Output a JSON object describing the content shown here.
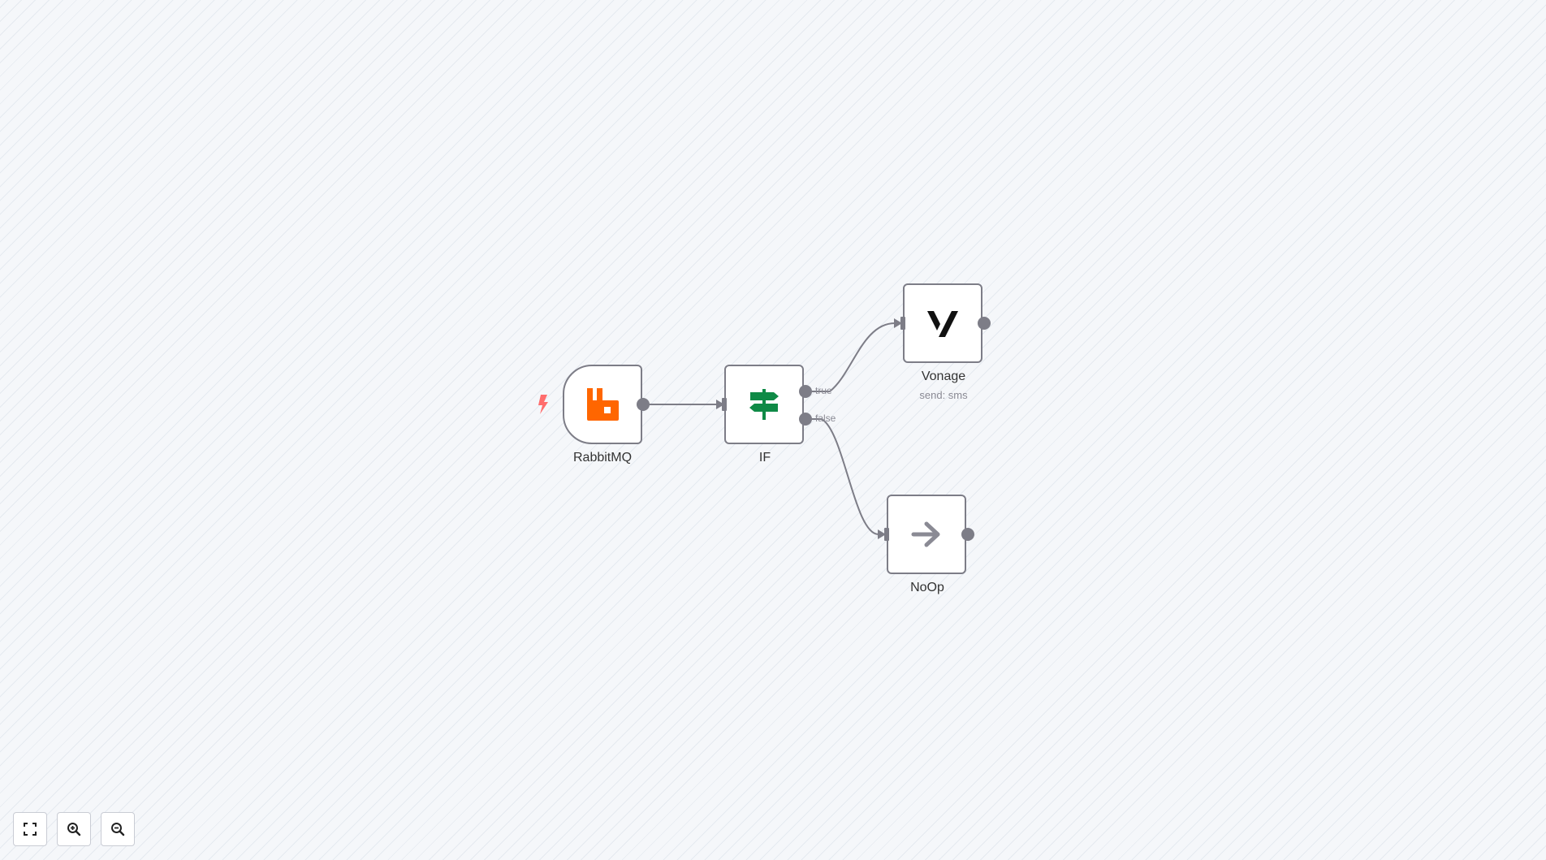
{
  "workflow": {
    "nodes": [
      {
        "id": "rabbitmq",
        "label": "RabbitMQ",
        "icon": "rabbitmq-icon",
        "is_trigger": true
      },
      {
        "id": "if",
        "label": "IF",
        "icon": "signpost-icon",
        "outputs": [
          "true",
          "false"
        ]
      },
      {
        "id": "vonage",
        "label": "Vonage",
        "subtitle": "send: sms",
        "icon": "vonage-icon"
      },
      {
        "id": "noop",
        "label": "NoOp",
        "icon": "arrow-right-icon"
      }
    ]
  },
  "colors": {
    "rabbitmq_orange": "#ff6600",
    "if_green": "#0f8a46",
    "vonage_black": "#111111",
    "noop_gray": "#8a8a94",
    "trigger_bolt": "#ff6d6d",
    "edge": "#7d7d87"
  },
  "controls": [
    {
      "name": "fit-view",
      "icon": "fit-view-icon"
    },
    {
      "name": "zoom-in",
      "icon": "zoom-in-icon"
    },
    {
      "name": "zoom-out",
      "icon": "zoom-out-icon"
    }
  ]
}
